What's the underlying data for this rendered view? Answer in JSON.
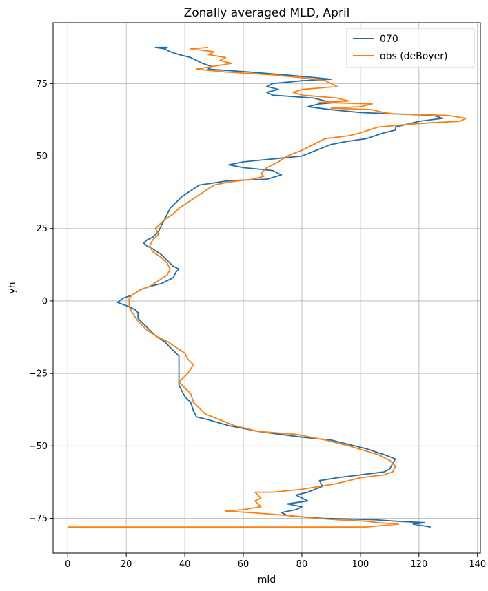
{
  "chart_data": {
    "type": "line",
    "orientation": "vertical-profile",
    "title": "Zonally averaged MLD, April",
    "xlabel": "mld",
    "ylabel": "yh",
    "xlim": [
      -5,
      141
    ],
    "ylim": [
      -87,
      96
    ],
    "xticks": [
      0,
      20,
      40,
      60,
      80,
      100,
      120,
      140
    ],
    "yticks": [
      -75,
      -50,
      -25,
      0,
      25,
      50,
      75
    ],
    "xtick_labels": [
      "0",
      "20",
      "40",
      "60",
      "80",
      "100",
      "120",
      "140"
    ],
    "ytick_labels": [
      "−75",
      "−50",
      "−25",
      "0",
      "25",
      "50",
      "75"
    ],
    "grid": true,
    "legend_position": "top-right",
    "series": [
      {
        "name": "070",
        "color": "#1f6ea8",
        "points": [
          [
            124,
            -78
          ],
          [
            118,
            -77
          ],
          [
            122,
            -76.5
          ],
          [
            112,
            -76
          ],
          [
            105,
            -75.5
          ],
          [
            87,
            -75
          ],
          [
            80,
            -74.5
          ],
          [
            75,
            -74
          ],
          [
            73,
            -73
          ],
          [
            78,
            -72
          ],
          [
            80,
            -71
          ],
          [
            75,
            -70
          ],
          [
            82,
            -69
          ],
          [
            80,
            -68
          ],
          [
            78,
            -67
          ],
          [
            82,
            -66
          ],
          [
            87,
            -64
          ],
          [
            86,
            -62
          ],
          [
            92,
            -61
          ],
          [
            100,
            -60
          ],
          [
            108,
            -59
          ],
          [
            110,
            -58
          ],
          [
            111,
            -56
          ],
          [
            112,
            -54.5
          ],
          [
            108,
            -53
          ],
          [
            102,
            -51
          ],
          [
            98,
            -50
          ],
          [
            90,
            -48
          ],
          [
            80,
            -47
          ],
          [
            65,
            -45
          ],
          [
            55,
            -43
          ],
          [
            48,
            -41
          ],
          [
            44,
            -40
          ],
          [
            43,
            -38
          ],
          [
            42,
            -35
          ],
          [
            40,
            -33
          ],
          [
            39,
            -31
          ],
          [
            38,
            -29
          ],
          [
            38,
            -27
          ],
          [
            38,
            -25
          ],
          [
            38,
            -23
          ],
          [
            38,
            -21
          ],
          [
            38,
            -19
          ],
          [
            37,
            -18
          ],
          [
            35,
            -16
          ],
          [
            33,
            -14
          ],
          [
            30,
            -12
          ],
          [
            28,
            -10
          ],
          [
            26,
            -8
          ],
          [
            24,
            -6
          ],
          [
            24,
            -4
          ],
          [
            23,
            -3
          ],
          [
            21,
            -2
          ],
          [
            17,
            -0.5
          ],
          [
            19,
            1
          ],
          [
            22,
            2
          ],
          [
            25,
            4
          ],
          [
            28,
            5
          ],
          [
            32,
            6
          ],
          [
            36,
            8
          ],
          [
            37,
            10
          ],
          [
            38,
            11
          ],
          [
            36,
            12
          ],
          [
            34,
            14
          ],
          [
            32,
            16
          ],
          [
            29,
            18
          ],
          [
            27,
            19
          ],
          [
            26,
            20
          ],
          [
            27,
            21
          ],
          [
            29,
            22
          ],
          [
            31,
            24
          ],
          [
            32,
            26
          ],
          [
            33,
            28
          ],
          [
            34,
            30
          ],
          [
            35,
            32
          ],
          [
            37,
            34
          ],
          [
            39,
            36
          ],
          [
            42,
            38
          ],
          [
            45,
            40
          ],
          [
            55,
            41.5
          ],
          [
            68,
            42
          ],
          [
            73,
            43.5
          ],
          [
            70,
            45
          ],
          [
            60,
            46
          ],
          [
            55,
            47
          ],
          [
            60,
            48
          ],
          [
            70,
            49
          ],
          [
            80,
            50
          ],
          [
            85,
            52
          ],
          [
            90,
            54
          ],
          [
            95,
            55
          ],
          [
            102,
            56
          ],
          [
            108,
            58
          ],
          [
            112,
            59
          ],
          [
            112,
            60
          ],
          [
            120,
            62
          ],
          [
            128,
            63
          ],
          [
            125,
            64
          ],
          [
            100,
            65
          ],
          [
            90,
            66
          ],
          [
            82,
            67
          ],
          [
            86,
            68
          ],
          [
            92,
            68.5
          ],
          [
            88,
            69
          ],
          [
            84,
            70
          ],
          [
            70,
            71
          ],
          [
            68,
            72
          ],
          [
            72,
            73
          ],
          [
            68,
            74
          ],
          [
            70,
            75
          ],
          [
            80,
            76
          ],
          [
            90,
            76.5
          ],
          [
            85,
            77
          ],
          [
            74,
            78
          ],
          [
            62,
            79
          ],
          [
            48,
            80
          ],
          [
            49,
            81
          ],
          [
            46,
            82
          ],
          [
            44,
            83
          ],
          [
            42,
            84
          ],
          [
            38,
            85
          ],
          [
            35,
            86
          ],
          [
            33,
            87
          ],
          [
            30,
            87.5
          ],
          [
            34,
            87.5
          ],
          [
            33,
            87
          ]
        ]
      },
      {
        "name": "obs (deBoyer)",
        "color": "#ff7f0e",
        "points": [
          [
            0,
            -78
          ],
          [
            102,
            -78
          ],
          [
            113,
            -77
          ],
          [
            106,
            -76.5
          ],
          [
            102,
            -76
          ],
          [
            92,
            -75.5
          ],
          [
            85,
            -75
          ],
          [
            75,
            -74
          ],
          [
            62,
            -73
          ],
          [
            54,
            -72.5
          ],
          [
            60,
            -72
          ],
          [
            66,
            -71
          ],
          [
            64,
            -69
          ],
          [
            66,
            -68
          ],
          [
            64,
            -66
          ],
          [
            70,
            -66
          ],
          [
            80,
            -65
          ],
          [
            92,
            -63
          ],
          [
            100,
            -61
          ],
          [
            108,
            -60
          ],
          [
            111,
            -59
          ],
          [
            112,
            -57
          ],
          [
            110,
            -55
          ],
          [
            106,
            -53
          ],
          [
            101,
            -51.5
          ],
          [
            96,
            -50
          ],
          [
            88,
            -48
          ],
          [
            78,
            -46
          ],
          [
            65,
            -45
          ],
          [
            57,
            -43
          ],
          [
            52,
            -41
          ],
          [
            47,
            -39
          ],
          [
            45,
            -37
          ],
          [
            43,
            -35
          ],
          [
            42,
            -32
          ],
          [
            40,
            -30
          ],
          [
            38,
            -28
          ],
          [
            41,
            -25
          ],
          [
            43,
            -22
          ],
          [
            41,
            -20
          ],
          [
            40,
            -18
          ],
          [
            37,
            -16
          ],
          [
            34,
            -14
          ],
          [
            30,
            -12
          ],
          [
            27,
            -10
          ],
          [
            24,
            -7
          ],
          [
            22,
            -4
          ],
          [
            21,
            -2
          ],
          [
            21,
            0
          ],
          [
            21,
            1
          ],
          [
            22,
            2
          ],
          [
            25,
            4
          ],
          [
            28,
            5
          ],
          [
            31,
            7
          ],
          [
            34,
            9
          ],
          [
            35,
            11
          ],
          [
            34,
            13
          ],
          [
            32,
            15
          ],
          [
            29,
            17
          ],
          [
            28,
            19
          ],
          [
            29,
            21
          ],
          [
            31,
            23
          ],
          [
            30,
            25
          ],
          [
            33,
            28
          ],
          [
            36,
            30
          ],
          [
            38,
            32
          ],
          [
            41,
            34
          ],
          [
            44,
            36
          ],
          [
            47,
            38
          ],
          [
            50,
            40
          ],
          [
            55,
            41
          ],
          [
            63,
            42
          ],
          [
            67,
            43
          ],
          [
            66,
            44
          ],
          [
            68,
            46
          ],
          [
            72,
            48
          ],
          [
            75,
            50
          ],
          [
            80,
            52
          ],
          [
            84,
            54
          ],
          [
            88,
            56
          ],
          [
            96,
            57
          ],
          [
            100,
            58
          ],
          [
            106,
            60
          ],
          [
            117,
            61
          ],
          [
            124,
            61.5
          ],
          [
            134,
            62
          ],
          [
            136,
            63
          ],
          [
            130,
            64
          ],
          [
            112,
            64.5
          ],
          [
            108,
            65
          ],
          [
            104,
            66
          ],
          [
            90,
            66.5
          ],
          [
            100,
            67
          ],
          [
            104,
            68
          ],
          [
            86,
            68.5
          ],
          [
            96,
            69
          ],
          [
            92,
            70
          ],
          [
            80,
            71
          ],
          [
            77,
            72
          ],
          [
            80,
            73
          ],
          [
            92,
            74
          ],
          [
            90,
            75
          ],
          [
            88,
            76
          ],
          [
            80,
            77
          ],
          [
            70,
            78
          ],
          [
            54,
            79
          ],
          [
            44,
            80
          ],
          [
            50,
            81
          ],
          [
            56,
            82
          ],
          [
            52,
            83
          ],
          [
            54,
            84
          ],
          [
            48,
            85
          ],
          [
            50,
            86
          ],
          [
            42,
            87
          ],
          [
            48,
            87.5
          ]
        ]
      }
    ]
  }
}
